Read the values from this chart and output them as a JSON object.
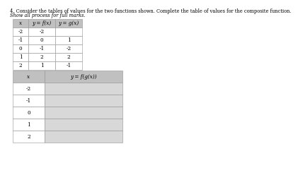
{
  "title_line1": "4. Consider the tables of values for the two functions shown. Complete the table of values for the composite function.",
  "title_line2": "Show all process for full marks.",
  "table1_headers": [
    "x",
    "y = f(x)",
    "y = g(x)"
  ],
  "table1_rows": [
    [
      "-2",
      "-2",
      ""
    ],
    [
      "-1",
      "0",
      "1"
    ],
    [
      "0",
      "-1",
      "-2"
    ],
    [
      "1",
      "2",
      "2"
    ],
    [
      "2",
      "1",
      "-1"
    ]
  ],
  "table2_header_x": "x",
  "table2_header_y": "y = f(g(x))",
  "table2_x_vals": [
    "-2",
    "-1",
    "0",
    "1",
    "2"
  ],
  "header_bg": "#c0c0c0",
  "row_bg_white": "#ffffff",
  "row_bg_light": "#d8d8d8",
  "border_color": "#909090",
  "text_color": "#000000",
  "font_size_title": 4.8,
  "font_size_table": 5.2
}
